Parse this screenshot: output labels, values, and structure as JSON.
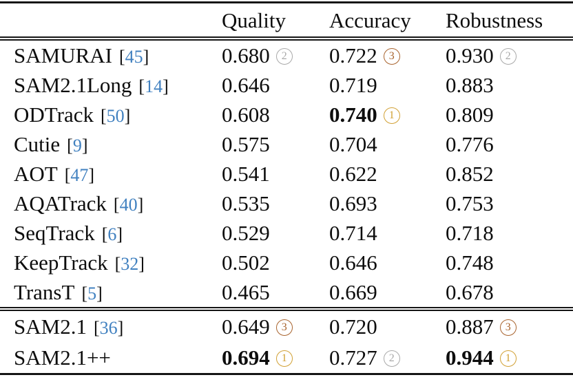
{
  "table": {
    "columns": [
      "Quality",
      "Accuracy",
      "Robustness"
    ],
    "cite_open": "[",
    "cite_close": "]",
    "colors": {
      "cite": "#4181c0",
      "rule": "#151515",
      "text": "#0d0d0d",
      "ranks": {
        "1": "#d1a033",
        "2": "#a9a9a9",
        "3": "#a8632d"
      }
    },
    "sections": [
      {
        "name": "competitors",
        "rows": [
          {
            "method": "SAMURAI",
            "cite": "45",
            "values": [
              {
                "value": "0.680",
                "bold": false,
                "rank": "2"
              },
              {
                "value": "0.722",
                "bold": false,
                "rank": "3"
              },
              {
                "value": "0.930",
                "bold": false,
                "rank": "2"
              }
            ]
          },
          {
            "method": "SAM2.1Long",
            "cite": "14",
            "values": [
              {
                "value": "0.646",
                "bold": false,
                "rank": null
              },
              {
                "value": "0.719",
                "bold": false,
                "rank": null
              },
              {
                "value": "0.883",
                "bold": false,
                "rank": null
              }
            ]
          },
          {
            "method": "ODTrack",
            "cite": "50",
            "values": [
              {
                "value": "0.608",
                "bold": false,
                "rank": null
              },
              {
                "value": "0.740",
                "bold": true,
                "rank": "1"
              },
              {
                "value": "0.809",
                "bold": false,
                "rank": null
              }
            ]
          },
          {
            "method": "Cutie",
            "cite": "9",
            "values": [
              {
                "value": "0.575",
                "bold": false,
                "rank": null
              },
              {
                "value": "0.704",
                "bold": false,
                "rank": null
              },
              {
                "value": "0.776",
                "bold": false,
                "rank": null
              }
            ]
          },
          {
            "method": "AOT",
            "cite": "47",
            "values": [
              {
                "value": "0.541",
                "bold": false,
                "rank": null
              },
              {
                "value": "0.622",
                "bold": false,
                "rank": null
              },
              {
                "value": "0.852",
                "bold": false,
                "rank": null
              }
            ]
          },
          {
            "method": "AQATrack",
            "cite": "40",
            "values": [
              {
                "value": "0.535",
                "bold": false,
                "rank": null
              },
              {
                "value": "0.693",
                "bold": false,
                "rank": null
              },
              {
                "value": "0.753",
                "bold": false,
                "rank": null
              }
            ]
          },
          {
            "method": "SeqTrack",
            "cite": "6",
            "values": [
              {
                "value": "0.529",
                "bold": false,
                "rank": null
              },
              {
                "value": "0.714",
                "bold": false,
                "rank": null
              },
              {
                "value": "0.718",
                "bold": false,
                "rank": null
              }
            ]
          },
          {
            "method": "KeepTrack",
            "cite": "32",
            "values": [
              {
                "value": "0.502",
                "bold": false,
                "rank": null
              },
              {
                "value": "0.646",
                "bold": false,
                "rank": null
              },
              {
                "value": "0.748",
                "bold": false,
                "rank": null
              }
            ]
          },
          {
            "method": "TransT",
            "cite": "5",
            "values": [
              {
                "value": "0.465",
                "bold": false,
                "rank": null
              },
              {
                "value": "0.669",
                "bold": false,
                "rank": null
              },
              {
                "value": "0.678",
                "bold": false,
                "rank": null
              }
            ]
          }
        ]
      },
      {
        "name": "sam-variants",
        "rows": [
          {
            "method": "SAM2.1",
            "cite": "36",
            "values": [
              {
                "value": "0.649",
                "bold": false,
                "rank": "3"
              },
              {
                "value": "0.720",
                "bold": false,
                "rank": null
              },
              {
                "value": "0.887",
                "bold": false,
                "rank": "3"
              }
            ]
          },
          {
            "method": "SAM2.1++",
            "cite": null,
            "values": [
              {
                "value": "0.694",
                "bold": true,
                "rank": "1"
              },
              {
                "value": "0.727",
                "bold": false,
                "rank": "2"
              },
              {
                "value": "0.944",
                "bold": true,
                "rank": "1"
              }
            ]
          }
        ]
      }
    ]
  }
}
